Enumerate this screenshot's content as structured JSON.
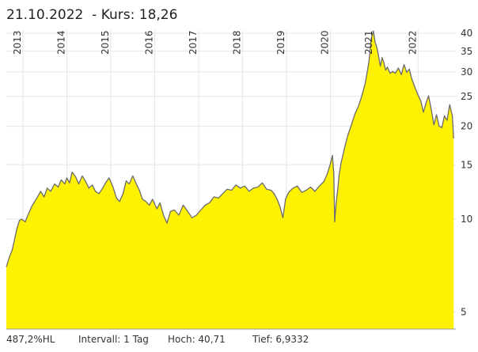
{
  "header": {
    "date": "21.10.2022",
    "price_text": "Kurs: 18,26"
  },
  "footer": {
    "performance": "487,2%HL",
    "interval": "Intervall: 1 Tag",
    "high": "Hoch:  40,71",
    "low": "Tief: 6,9332"
  },
  "colors": {
    "area_fill": "#fff200",
    "line": "#6b6b6b",
    "grid": "#e6e6e6",
    "axis": "#999999",
    "text": "#333333"
  },
  "chart_data": {
    "type": "area",
    "scale_y": "log",
    "ylim": [
      4.4,
      41
    ],
    "xlim": [
      2012.62,
      2022.86
    ],
    "grid": true,
    "title": "",
    "xlabel": "",
    "ylabel": "",
    "y_ticks": [
      5,
      10,
      15,
      20,
      25,
      30,
      35,
      40
    ],
    "x_ticks": [
      {
        "label": "2013",
        "x": 2013.0
      },
      {
        "label": "2014",
        "x": 2014.0
      },
      {
        "label": "2015",
        "x": 2015.0
      },
      {
        "label": "2016",
        "x": 2016.0
      },
      {
        "label": "2017",
        "x": 2017.0
      },
      {
        "label": "2018",
        "x": 2018.0
      },
      {
        "label": "2019",
        "x": 2019.0
      },
      {
        "label": "2020",
        "x": 2020.0
      },
      {
        "label": "2021",
        "x": 2021.0
      },
      {
        "label": "2022",
        "x": 2022.0
      }
    ],
    "series": [
      {
        "x": [
          2012.62,
          2012.66,
          2012.7,
          2012.75,
          2012.8,
          2012.86,
          2012.92,
          2012.97,
          2013.05,
          2013.1,
          2013.2,
          2013.3,
          2013.4,
          2013.48,
          2013.55,
          2013.63,
          2013.72,
          2013.8,
          2013.87,
          2013.95,
          2014.0,
          2014.06,
          2014.12,
          2014.2,
          2014.27,
          2014.35,
          2014.42,
          2014.5,
          2014.58,
          2014.65,
          2014.73,
          2014.8,
          2014.88,
          2014.96,
          2015.05,
          2015.13,
          2015.2,
          2015.28,
          2015.35,
          2015.42,
          2015.5,
          2015.58,
          2015.65,
          2015.72,
          2015.8,
          2015.88,
          2015.95,
          2016.05,
          2016.12,
          2016.2,
          2016.28,
          2016.36,
          2016.45,
          2016.55,
          2016.65,
          2016.75,
          2016.85,
          2016.95,
          2017.05,
          2017.15,
          2017.25,
          2017.35,
          2017.45,
          2017.55,
          2017.65,
          2017.75,
          2017.85,
          2017.95,
          2018.05,
          2018.15,
          2018.25,
          2018.35,
          2018.45,
          2018.55,
          2018.65,
          2018.72,
          2018.8,
          2018.86,
          2018.92,
          2018.98,
          2019.05,
          2019.15,
          2019.25,
          2019.35,
          2019.45,
          2019.55,
          2019.65,
          2019.75,
          2019.85,
          2019.93,
          2020.0,
          2020.05,
          2020.08,
          2020.1,
          2020.13,
          2020.17,
          2020.2,
          2020.25,
          2020.32,
          2020.4,
          2020.48,
          2020.56,
          2020.64,
          2020.72,
          2020.8,
          2020.88,
          2020.93,
          2020.98,
          2021.02,
          2021.06,
          2021.1,
          2021.14,
          2021.18,
          2021.22,
          2021.26,
          2021.3,
          2021.36,
          2021.42,
          2021.48,
          2021.55,
          2021.62,
          2021.68,
          2021.74,
          2021.8,
          2021.86,
          2021.93,
          2022.0,
          2022.06,
          2022.12,
          2022.18,
          2022.24,
          2022.3,
          2022.36,
          2022.42,
          2022.48,
          2022.54,
          2022.6,
          2022.66,
          2022.72,
          2022.78,
          2022.81
        ],
        "y": [
          7.0,
          7.3,
          7.6,
          7.9,
          8.5,
          9.3,
          9.9,
          10.0,
          9.8,
          10.2,
          11.0,
          11.6,
          12.3,
          11.8,
          12.6,
          12.3,
          13.0,
          12.7,
          13.4,
          13.0,
          13.6,
          13.1,
          14.2,
          13.7,
          13.0,
          13.8,
          13.3,
          12.6,
          12.9,
          12.3,
          12.1,
          12.5,
          13.1,
          13.6,
          12.7,
          11.7,
          11.4,
          12.1,
          13.3,
          13.0,
          13.8,
          13.0,
          12.4,
          11.6,
          11.4,
          11.1,
          11.6,
          10.8,
          11.3,
          10.3,
          9.7,
          10.6,
          10.7,
          10.3,
          11.1,
          10.6,
          10.1,
          10.3,
          10.7,
          11.1,
          11.3,
          11.8,
          11.7,
          12.1,
          12.5,
          12.4,
          12.9,
          12.6,
          12.8,
          12.3,
          12.6,
          12.7,
          13.1,
          12.5,
          12.4,
          12.1,
          11.5,
          10.9,
          10.1,
          11.6,
          12.2,
          12.6,
          12.8,
          12.2,
          12.4,
          12.7,
          12.3,
          12.8,
          13.2,
          14.0,
          15.1,
          16.1,
          14.0,
          9.8,
          11.2,
          12.5,
          13.9,
          15.3,
          16.9,
          18.7,
          20.2,
          21.9,
          23.2,
          25.1,
          27.7,
          32.4,
          38.2,
          40.7,
          37.5,
          36.0,
          33.7,
          31.3,
          33.4,
          32.2,
          30.4,
          31.1,
          29.7,
          30.1,
          29.7,
          30.9,
          29.4,
          31.7,
          29.9,
          30.6,
          28.4,
          26.7,
          25.2,
          24.2,
          22.2,
          23.8,
          25.1,
          22.7,
          20.2,
          21.8,
          20.0,
          19.8,
          21.6,
          20.9,
          23.5,
          21.6,
          18.26
        ]
      }
    ]
  }
}
